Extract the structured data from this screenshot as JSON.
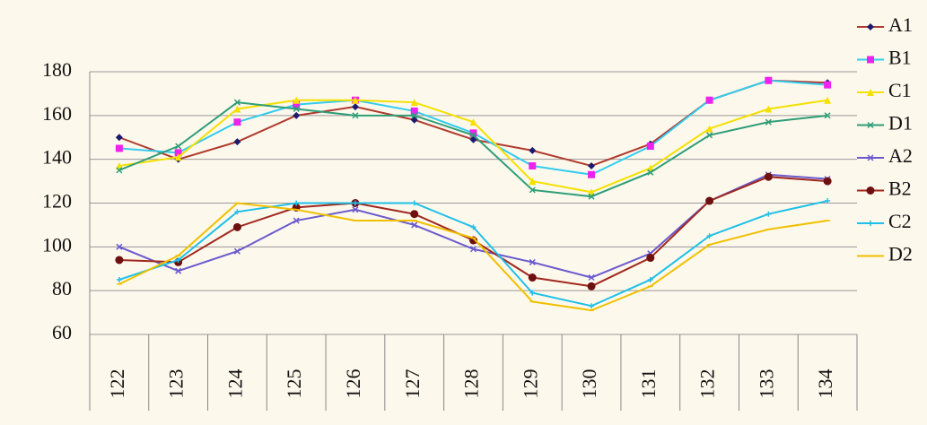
{
  "chart_data": {
    "type": "line",
    "categories": [
      "122",
      "123",
      "124",
      "125",
      "126",
      "127",
      "128",
      "129",
      "130",
      "131",
      "132",
      "133",
      "134"
    ],
    "ylim": [
      60,
      180
    ],
    "yticks": [
      60,
      80,
      100,
      120,
      140,
      160,
      180
    ],
    "grid": true,
    "legend": "right",
    "series": [
      {
        "name": "A1",
        "color": "#b03a2e",
        "marker_color": "#1a1a6e",
        "marker": "diamond",
        "values": [
          150,
          140,
          148,
          160,
          164,
          158,
          149,
          144,
          137,
          147,
          167,
          176,
          175
        ]
      },
      {
        "name": "B1",
        "color": "#33ccee",
        "marker_color": "#ee22ee",
        "marker": "square",
        "values": [
          145,
          143,
          157,
          165,
          167,
          162,
          152,
          137,
          133,
          146,
          167,
          176,
          174
        ]
      },
      {
        "name": "C1",
        "color": "#f5e000",
        "marker_color": "#f5e000",
        "marker": "triangle",
        "values": [
          137,
          141,
          163,
          167,
          167,
          166,
          157,
          130,
          125,
          136,
          154,
          163,
          167
        ]
      },
      {
        "name": "D1",
        "color": "#2e9e78",
        "marker_color": "#2e9e78",
        "marker": "cross",
        "values": [
          135,
          146,
          166,
          163,
          160,
          160,
          151,
          126,
          123,
          134,
          151,
          157,
          160
        ]
      },
      {
        "name": "A2",
        "color": "#6a5acd",
        "marker_color": "#6a5acd",
        "marker": "star",
        "values": [
          100,
          89,
          98,
          112,
          117,
          110,
          99,
          93,
          86,
          97,
          121,
          133,
          131
        ]
      },
      {
        "name": "B2",
        "color": "#a0281e",
        "marker_color": "#6e1010",
        "marker": "circle",
        "values": [
          94,
          93,
          109,
          118,
          120,
          115,
          103,
          86,
          82,
          95,
          121,
          132,
          130
        ]
      },
      {
        "name": "C2",
        "color": "#1ec0e8",
        "marker_color": "#1ec0e8",
        "marker": "plus",
        "values": [
          85,
          94,
          116,
          120,
          120,
          120,
          109,
          79,
          73,
          85,
          105,
          115,
          121
        ]
      },
      {
        "name": "D2",
        "color": "#f0c000",
        "marker_color": "#f0c000",
        "marker": "dash",
        "values": [
          83,
          96,
          120,
          117,
          112,
          112,
          104,
          75,
          71,
          82,
          101,
          108,
          112
        ]
      }
    ]
  }
}
